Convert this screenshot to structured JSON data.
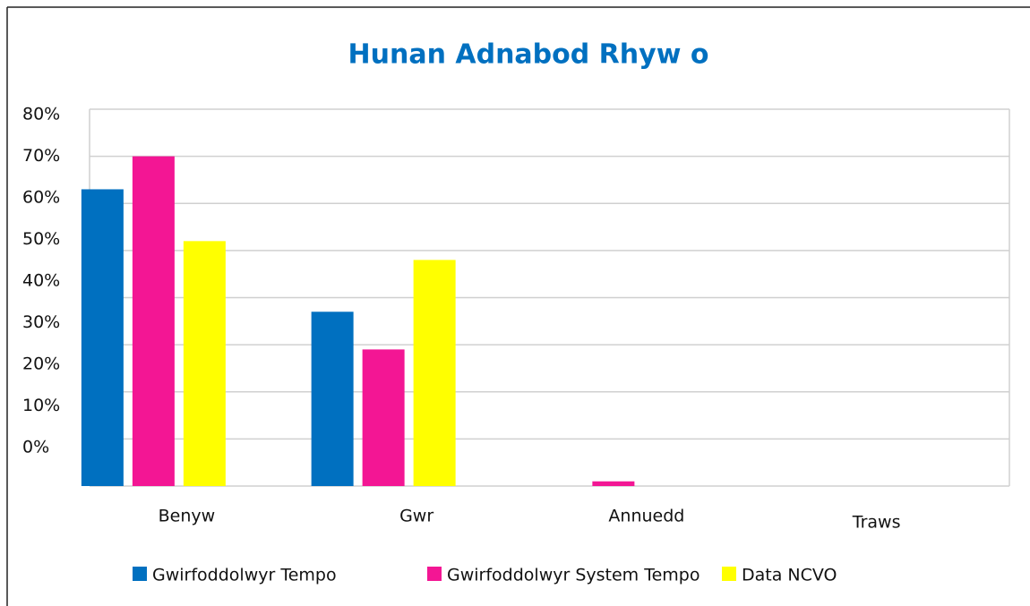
{
  "chart_data": {
    "type": "bar",
    "title": "Hunan Adnabod Rhyw o",
    "categories": [
      "Benyw",
      "Gwr",
      "Annuedd",
      "Traws"
    ],
    "series": [
      {
        "name": "Gwirfoddolwyr Tempo",
        "color": "#0070c0",
        "values": [
          63,
          37,
          0,
          0
        ]
      },
      {
        "name": "Gwirfoddolwyr System Tempo",
        "color": "#f31694",
        "values": [
          70,
          29,
          1,
          0
        ]
      },
      {
        "name": "Data NCVO",
        "color": "#ffff00",
        "values": [
          52,
          48,
          0,
          0
        ]
      }
    ],
    "ylim": [
      0,
      80
    ],
    "yticks": [
      {
        "value": 0,
        "label": "0%"
      },
      {
        "value": 10,
        "label": "10%"
      },
      {
        "value": 20,
        "label": "20%"
      },
      {
        "value": 30,
        "label": "30%"
      },
      {
        "value": 40,
        "label": "40%"
      },
      {
        "value": 50,
        "label": "50%"
      },
      {
        "value": 60,
        "label": "60%"
      },
      {
        "value": 70,
        "label": "70%"
      },
      {
        "value": 80,
        "label": "80%"
      }
    ],
    "grid": true,
    "legend": "bottom"
  }
}
